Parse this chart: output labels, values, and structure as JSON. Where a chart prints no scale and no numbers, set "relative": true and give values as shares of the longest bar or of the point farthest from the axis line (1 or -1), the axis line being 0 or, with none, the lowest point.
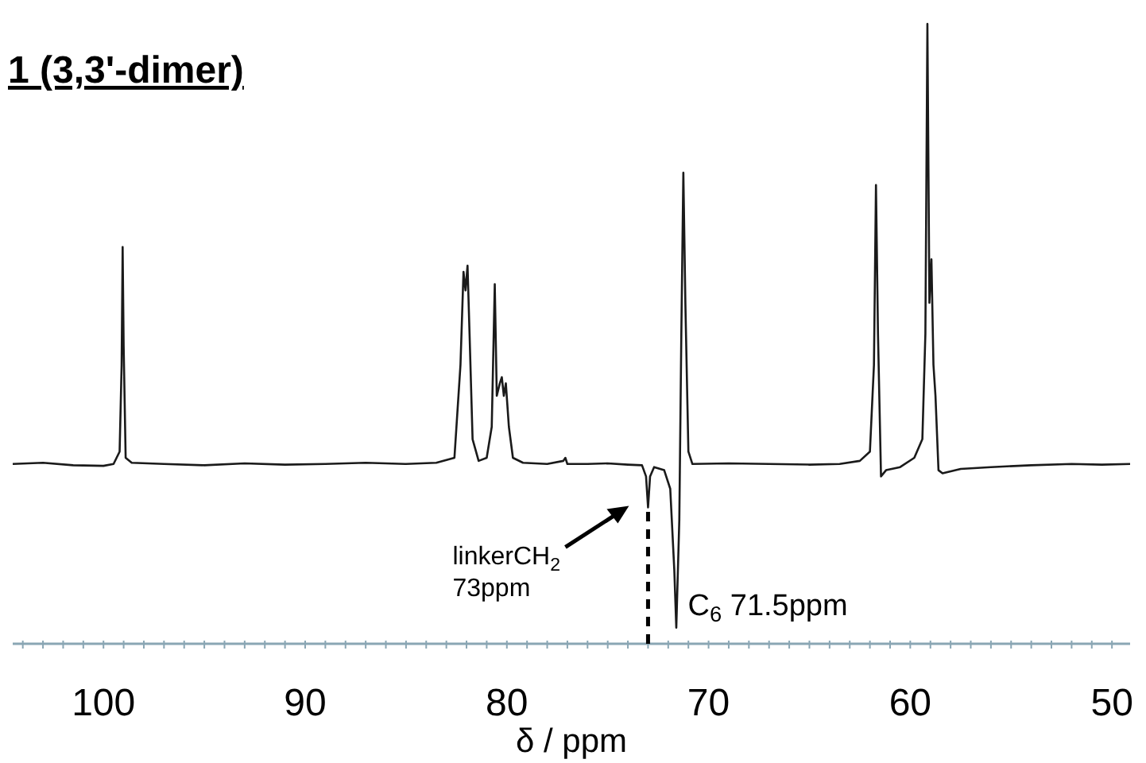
{
  "chart_data": {
    "type": "line",
    "title": "1 (3,3'-dimer)",
    "xlabel": "δ / ppm",
    "relative": true,
    "color": "#1a1a1a",
    "xlim": [
      104.5,
      49.1
    ],
    "xticks": [
      {
        "value": 104,
        "label": null
      },
      {
        "value": 103,
        "label": null
      },
      {
        "value": 102,
        "label": null
      },
      {
        "value": 101,
        "label": null
      },
      100,
      {
        "value": 99,
        "label": null
      },
      {
        "value": 98,
        "label": null
      },
      {
        "value": 97,
        "label": null
      },
      {
        "value": 96,
        "label": null
      },
      {
        "value": 95,
        "label": null
      },
      {
        "value": 94,
        "label": null
      },
      {
        "value": 93,
        "label": null
      },
      {
        "value": 92,
        "label": null
      },
      {
        "value": 91,
        "label": null
      },
      90,
      {
        "value": 89,
        "label": null
      },
      {
        "value": 88,
        "label": null
      },
      {
        "value": 87,
        "label": null
      },
      {
        "value": 86,
        "label": null
      },
      {
        "value": 85,
        "label": null
      },
      {
        "value": 84,
        "label": null
      },
      {
        "value": 83,
        "label": null
      },
      {
        "value": 82,
        "label": null
      },
      {
        "value": 81,
        "label": null
      },
      80,
      {
        "value": 79,
        "label": null
      },
      {
        "value": 78,
        "label": null
      },
      {
        "value": 77,
        "label": null
      },
      {
        "value": 76,
        "label": null
      },
      {
        "value": 75,
        "label": null
      },
      {
        "value": 74,
        "label": null
      },
      {
        "value": 73,
        "label": null
      },
      {
        "value": 72,
        "label": null
      },
      {
        "value": 71,
        "label": null
      },
      70,
      {
        "value": 69,
        "label": null
      },
      {
        "value": 68,
        "label": null
      },
      {
        "value": 67,
        "label": null
      },
      {
        "value": 66,
        "label": null
      },
      {
        "value": 65,
        "label": null
      },
      {
        "value": 64,
        "label": null
      },
      {
        "value": 63,
        "label": null
      },
      {
        "value": 62,
        "label": null
      },
      {
        "value": 61,
        "label": null
      },
      60,
      {
        "value": 59,
        "label": null
      },
      {
        "value": 58,
        "label": null
      },
      {
        "value": 57,
        "label": null
      },
      {
        "value": 56,
        "label": null
      },
      {
        "value": 55,
        "label": null
      },
      {
        "value": 54,
        "label": null
      },
      {
        "value": 53,
        "label": null
      },
      {
        "value": 52,
        "label": null
      },
      {
        "value": 51,
        "label": null
      },
      50
    ],
    "x": [
      104.5,
      103,
      101.5,
      100,
      99.5,
      99.2,
      99.1,
      99.05,
      99.0,
      98.9,
      98.6,
      97,
      95,
      93,
      91,
      89,
      87,
      85,
      83.5,
      82.6,
      82.3,
      82.15,
      82.05,
      81.95,
      81.85,
      81.7,
      81.4,
      81.0,
      80.75,
      80.6,
      80.5,
      80.35,
      80.25,
      80.15,
      80.05,
      79.9,
      79.7,
      79.2,
      78,
      77.2,
      77.1,
      77.0,
      76,
      75,
      74,
      73.3,
      73.1,
      73.0,
      72.9,
      72.7,
      72.2,
      71.9,
      71.7,
      71.6,
      71.45,
      71.35,
      71.25,
      71.15,
      71.0,
      70.8,
      69,
      67,
      65,
      63.5,
      62.5,
      62.0,
      61.8,
      61.7,
      61.6,
      61.45,
      61.2,
      60.5,
      59.8,
      59.4,
      59.25,
      59.15,
      59.05,
      58.95,
      58.85,
      58.75,
      58.6,
      58.4,
      57.5,
      56,
      54,
      52,
      50.5,
      49.1
    ],
    "values": [
      0.29,
      0.292,
      0.288,
      0.287,
      0.29,
      0.31,
      0.45,
      0.64,
      0.48,
      0.3,
      0.292,
      0.29,
      0.288,
      0.291,
      0.289,
      0.29,
      0.292,
      0.29,
      0.292,
      0.3,
      0.45,
      0.6,
      0.57,
      0.61,
      0.5,
      0.33,
      0.295,
      0.3,
      0.35,
      0.58,
      0.4,
      0.42,
      0.43,
      0.4,
      0.42,
      0.35,
      0.3,
      0.292,
      0.29,
      0.295,
      0.3,
      0.29,
      0.29,
      0.291,
      0.289,
      0.288,
      0.27,
      0.22,
      0.27,
      0.285,
      0.28,
      0.25,
      0.12,
      0.026,
      0.2,
      0.5,
      0.76,
      0.55,
      0.31,
      0.29,
      0.291,
      0.29,
      0.289,
      0.29,
      0.295,
      0.31,
      0.45,
      0.74,
      0.5,
      0.27,
      0.28,
      0.285,
      0.3,
      0.33,
      0.5,
      1.0,
      0.55,
      0.62,
      0.45,
      0.4,
      0.28,
      0.275,
      0.282,
      0.285,
      0.288,
      0.29,
      0.289,
      0.29
    ],
    "ref_lines": [
      {
        "axis": "x",
        "value": 73,
        "line_style": "dashed",
        "color": "#000000"
      }
    ],
    "annotations": [
      "linkerCH$_{2}$\n73ppm",
      {
        "text": "C$_{6}$ 71.5ppm",
        "x": 71.5,
        "y": 0.026
      }
    ]
  }
}
